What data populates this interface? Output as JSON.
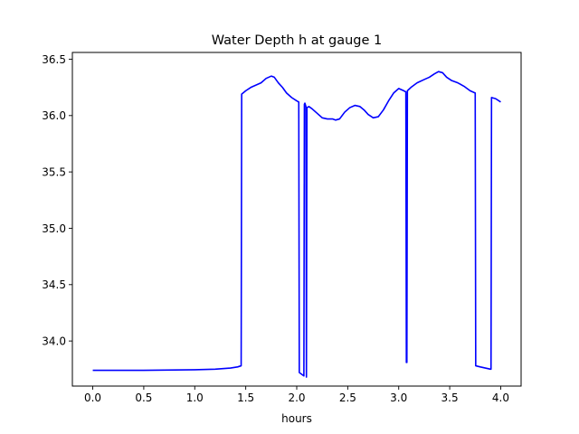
{
  "chart_data": {
    "type": "line",
    "title": "Water Depth h at gauge 1",
    "xlabel": "hours",
    "ylabel": "",
    "xlim": [
      -0.2,
      4.2
    ],
    "ylim": [
      33.6,
      36.56
    ],
    "xticks": [
      0.0,
      0.5,
      1.0,
      1.5,
      2.0,
      2.5,
      3.0,
      3.5,
      4.0
    ],
    "xtick_labels": [
      "0.0",
      "0.5",
      "1.0",
      "1.5",
      "2.0",
      "2.5",
      "3.0",
      "3.5",
      "4.0"
    ],
    "yticks": [
      34.0,
      34.5,
      35.0,
      35.5,
      36.0,
      36.5
    ],
    "ytick_labels": [
      "34.0",
      "34.5",
      "35.0",
      "35.5",
      "36.0",
      "36.5"
    ],
    "grid": false,
    "colors": {
      "line": "#0000ff"
    },
    "series": [
      {
        "x": [
          0.0,
          0.5,
          1.0,
          1.2,
          1.35,
          1.42,
          1.455,
          1.46,
          1.5,
          1.55,
          1.6,
          1.65,
          1.7,
          1.75,
          1.78,
          1.82,
          1.86,
          1.9,
          1.95,
          2.0,
          2.02,
          2.025,
          2.07,
          2.075,
          2.08,
          2.09,
          2.095,
          2.1,
          2.12,
          2.15,
          2.2,
          2.25,
          2.3,
          2.35,
          2.38,
          2.42,
          2.47,
          2.52,
          2.57,
          2.62,
          2.66,
          2.7,
          2.75,
          2.8,
          2.85,
          2.9,
          2.95,
          3.0,
          3.05,
          3.07,
          3.075,
          3.08,
          3.085,
          3.12,
          3.18,
          3.25,
          3.3,
          3.35,
          3.39,
          3.43,
          3.47,
          3.52,
          3.58,
          3.64,
          3.7,
          3.75,
          3.755,
          3.8,
          3.9,
          3.905,
          3.91,
          3.95,
          4.0
        ],
        "y": [
          33.74,
          33.74,
          33.745,
          33.75,
          33.76,
          33.77,
          33.78,
          36.19,
          36.22,
          36.25,
          36.27,
          36.29,
          36.33,
          36.35,
          36.34,
          36.29,
          36.25,
          36.2,
          36.16,
          36.13,
          36.12,
          33.72,
          33.69,
          36.1,
          36.11,
          36.08,
          33.68,
          36.07,
          36.08,
          36.06,
          36.02,
          35.98,
          35.97,
          35.97,
          35.96,
          35.97,
          36.03,
          36.07,
          36.09,
          36.08,
          36.05,
          36.01,
          35.98,
          35.99,
          36.05,
          36.13,
          36.2,
          36.24,
          36.22,
          36.21,
          33.81,
          33.81,
          36.22,
          36.25,
          36.29,
          36.32,
          36.34,
          36.37,
          36.39,
          36.38,
          36.34,
          36.31,
          36.29,
          36.26,
          36.22,
          36.2,
          33.78,
          33.77,
          33.75,
          33.75,
          36.16,
          36.15,
          36.12
        ]
      }
    ]
  }
}
